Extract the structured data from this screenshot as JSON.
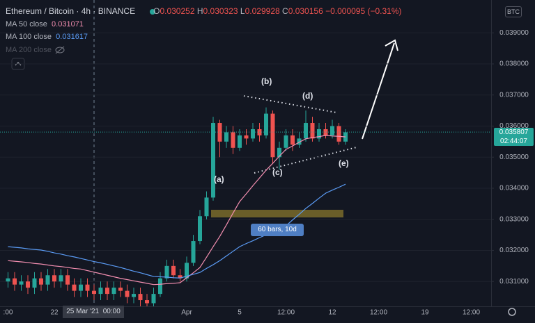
{
  "header": {
    "symbol": "Ethereum / Bitcoin",
    "interval": "4h",
    "exchange": "BINANCE",
    "open_label": "O",
    "open": "0.030252",
    "high_label": "H",
    "high": "0.030323",
    "low_label": "L",
    "low": "0.029928",
    "close_label": "C",
    "close": "0.030156",
    "change": "−0.000095 (−0.31%)",
    "currency": "BTC"
  },
  "hidden_indicators": [
    "MA 200 close"
  ],
  "chart_data": {
    "type": "candlestick",
    "up_color": "#26a69a",
    "down_color": "#ef5350",
    "categories": [
      ":00",
      null,
      null,
      null,
      null,
      null,
      null,
      "22",
      null,
      null,
      null,
      null,
      null,
      null,
      null,
      null,
      null,
      null,
      null,
      null,
      null,
      null,
      null,
      null,
      null,
      null,
      null,
      "Apr",
      null,
      null,
      null,
      null,
      null,
      null,
      null,
      "5",
      null,
      null,
      null,
      null,
      null,
      null,
      "12:00",
      null,
      null,
      null,
      null,
      null,
      null,
      "12",
      null,
      null,
      null,
      null,
      null,
      null,
      "12:00",
      null,
      null,
      null,
      null,
      null,
      null,
      "19",
      null,
      null,
      null,
      null,
      null,
      null,
      "12:00",
      null,
      null
    ],
    "open": [
      0.031,
      0.0311,
      0.0309,
      0.031,
      0.0308,
      0.0311,
      0.0309,
      0.0312,
      0.031,
      0.0312,
      0.0309,
      0.0307,
      0.0309,
      0.0307,
      0.0306,
      0.0308,
      0.0306,
      0.0308,
      0.0307,
      0.0305,
      0.0306,
      0.0304,
      0.0303,
      0.0306,
      0.0311,
      0.0315,
      0.0312,
      0.0311,
      0.0316,
      0.0323,
      0.0331,
      0.0337,
      0.0361,
      0.0355,
      0.0358,
      0.0353,
      0.0357,
      0.0356,
      0.0359,
      0.0357,
      0.0364,
      0.035,
      0.0353,
      0.0357,
      0.0354,
      0.0356,
      0.0361,
      0.0356,
      0.0359,
      0.0357,
      0.036,
      0.0355,
      null,
      null,
      null,
      null,
      null,
      null,
      null,
      null,
      null,
      null,
      null,
      null,
      null,
      null,
      null,
      null,
      null,
      null,
      null,
      null,
      null
    ],
    "high": [
      0.0313,
      0.0313,
      0.0312,
      0.0312,
      0.0313,
      0.0313,
      0.0314,
      0.0314,
      0.0314,
      0.0314,
      0.0311,
      0.0311,
      0.0311,
      0.0309,
      0.031,
      0.031,
      0.031,
      0.031,
      0.0309,
      0.0308,
      0.0308,
      0.0306,
      0.0308,
      0.0313,
      0.0317,
      0.0317,
      0.0314,
      0.0318,
      0.0325,
      0.0333,
      0.0339,
      0.0363,
      0.0362,
      0.036,
      0.036,
      0.0359,
      0.0359,
      0.0361,
      0.0361,
      0.0366,
      0.0365,
      0.0355,
      0.0359,
      0.0359,
      0.0358,
      0.0365,
      0.0363,
      0.0361,
      0.0361,
      0.0362,
      0.0361,
      0.0359,
      null,
      null,
      null,
      null,
      null,
      null,
      null,
      null,
      null,
      null,
      null,
      null,
      null,
      null,
      null,
      null,
      null,
      null,
      null,
      null,
      null
    ],
    "low": [
      0.0308,
      0.0307,
      0.0307,
      0.0306,
      0.0306,
      0.0307,
      0.0307,
      0.0308,
      0.0308,
      0.0307,
      0.0305,
      0.0305,
      0.0305,
      0.0304,
      0.0304,
      0.0304,
      0.0304,
      0.0305,
      0.0303,
      0.0303,
      0.0302,
      0.0302,
      0.0302,
      0.0305,
      0.031,
      0.0311,
      0.031,
      0.031,
      0.0315,
      0.0322,
      0.033,
      0.0336,
      0.035,
      0.0353,
      0.0351,
      0.0352,
      0.0354,
      0.0355,
      0.0355,
      0.0356,
      0.0348,
      0.0346,
      0.0352,
      0.0352,
      0.0353,
      0.0355,
      0.0355,
      0.0355,
      0.0356,
      0.0356,
      0.0354,
      0.0354,
      null,
      null,
      null,
      null,
      null,
      null,
      null,
      null,
      null,
      null,
      null,
      null,
      null,
      null,
      null,
      null,
      null,
      null,
      null,
      null,
      null
    ],
    "close": [
      0.0311,
      0.0309,
      0.031,
      0.0308,
      0.0311,
      0.0309,
      0.0312,
      0.031,
      0.0312,
      0.0309,
      0.0307,
      0.0309,
      0.0307,
      0.0306,
      0.0308,
      0.0306,
      0.0308,
      0.0307,
      0.0305,
      0.0306,
      0.0304,
      0.0303,
      0.0306,
      0.0311,
      0.0315,
      0.0312,
      0.0311,
      0.0316,
      0.0323,
      0.0331,
      0.0337,
      0.0361,
      0.0355,
      0.0358,
      0.0353,
      0.0357,
      0.0356,
      0.0359,
      0.0357,
      0.0364,
      0.035,
      0.0353,
      0.0357,
      0.0354,
      0.0356,
      0.0361,
      0.0356,
      0.0359,
      0.0357,
      0.036,
      0.0355,
      0.0358,
      null,
      null,
      null,
      null,
      null,
      null,
      null,
      null,
      null,
      null,
      null,
      null,
      null,
      null,
      null,
      null,
      null,
      null,
      null,
      null,
      null
    ],
    "series": [
      {
        "name": "MA 50 close",
        "color": "#f48fb1",
        "legend_value": 0.031071,
        "values": [
          0.03167,
          0.03165,
          0.03163,
          0.03161,
          0.03158,
          0.03156,
          0.03153,
          0.0315,
          0.03148,
          0.03145,
          0.03142,
          0.0314,
          0.03135,
          0.0313,
          0.03125,
          0.0312,
          0.03115,
          0.0311,
          0.03106,
          0.03102,
          0.03098,
          0.03094,
          0.0309,
          0.03091,
          0.03093,
          0.03094,
          0.03096,
          0.03112,
          0.03128,
          0.03145,
          0.03178,
          0.03212,
          0.03245,
          0.03282,
          0.0332,
          0.03357,
          0.03382,
          0.03408,
          0.03433,
          0.03458,
          0.0348,
          0.03503,
          0.03525,
          0.03536,
          0.03548,
          0.03559,
          0.03563,
          0.03566,
          0.0357,
          0.03568,
          0.03567,
          0.03565,
          null,
          null,
          null,
          null,
          null,
          null,
          null,
          null,
          null,
          null,
          null,
          null,
          null,
          null,
          null,
          null,
          null,
          null,
          null,
          null,
          null
        ]
      },
      {
        "name": "MA 100 close",
        "color": "#5b9cf6",
        "legend_value": 0.031617,
        "values": [
          0.03212,
          0.0321,
          0.03208,
          0.03205,
          0.03203,
          0.03201,
          0.03197,
          0.03192,
          0.03188,
          0.03183,
          0.03179,
          0.03174,
          0.03169,
          0.03164,
          0.0316,
          0.03155,
          0.0315,
          0.03145,
          0.03139,
          0.03133,
          0.03128,
          0.03122,
          0.03116,
          0.03115,
          0.03114,
          0.03112,
          0.03111,
          0.03117,
          0.03123,
          0.03129,
          0.03142,
          0.03154,
          0.03167,
          0.03182,
          0.03197,
          0.03212,
          0.03222,
          0.03231,
          0.03241,
          0.0325,
          0.0326,
          0.03269,
          0.03279,
          0.03298,
          0.03316,
          0.03335,
          0.03351,
          0.03368,
          0.03384,
          0.03394,
          0.03403,
          0.03413,
          null,
          null,
          null,
          null,
          null,
          null,
          null,
          null,
          null,
          null,
          null,
          null,
          null,
          null,
          null,
          null,
          null,
          null,
          null,
          null,
          null
        ]
      }
    ],
    "ylim": [
      0.0302,
      0.0399
    ],
    "yticks": [
      {
        "value": 0.031,
        "label": "0.031000"
      },
      {
        "value": 0.032,
        "label": "0.032000"
      },
      {
        "value": 0.033,
        "label": "0.033000"
      },
      {
        "value": 0.034,
        "label": "0.034000"
      },
      {
        "value": 0.035,
        "label": "0.035000"
      },
      {
        "value": 0.036,
        "label": "0.036000"
      },
      {
        "value": 0.037,
        "label": "0.037000"
      },
      {
        "value": 0.038,
        "label": "0.038000"
      },
      {
        "value": 0.039,
        "label": "0.039000"
      }
    ],
    "grid": true,
    "last_price": 0.035807,
    "countdown": "02:44:07",
    "crosshair_label": "25 Mar '21  00:00",
    "annotations": [
      "(a)",
      "(b)",
      "(c)",
      "(d)",
      "(e)",
      "60 bars, 10d"
    ]
  }
}
